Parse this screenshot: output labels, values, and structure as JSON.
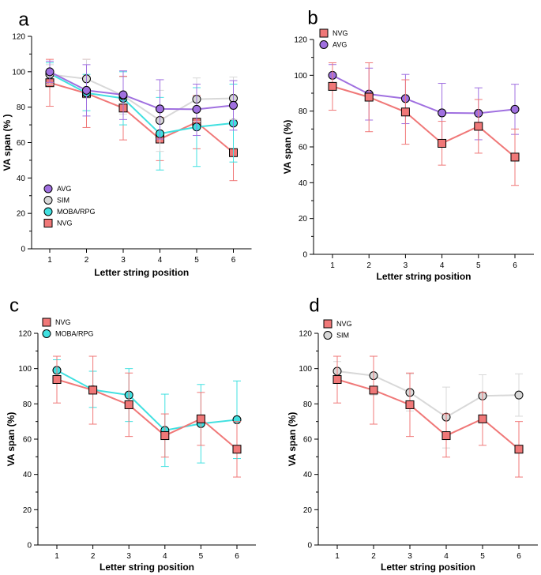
{
  "figure": {
    "panels": [
      {
        "letter": "a",
        "xlabel": "Letter string position",
        "ylabel": "VA span (% )",
        "legend_placement": "bottom-left",
        "legend_order": [
          "AVG",
          "SIM",
          "MOBA/RPG",
          "NVG"
        ]
      },
      {
        "letter": "b",
        "xlabel": "Letter string position",
        "ylabel": "VA span (%)",
        "legend_placement": "top-left",
        "legend_order": [
          "NVG",
          "AVG"
        ]
      },
      {
        "letter": "c",
        "xlabel": "Letter string position",
        "ylabel": "VA span (%)",
        "legend_placement": "top-left",
        "legend_order": [
          "NVG",
          "MOBA/RPG"
        ]
      },
      {
        "letter": "d",
        "xlabel": "Letter string position",
        "ylabel": "VA span (%)",
        "legend_placement": "top-left",
        "legend_order": [
          "NVG",
          "SIM"
        ]
      }
    ]
  },
  "chart_data": {
    "type": "line",
    "categories": [
      1,
      2,
      3,
      4,
      5,
      6
    ],
    "ylim": [
      0,
      120
    ],
    "yticks": [
      0,
      20,
      40,
      60,
      80,
      100,
      120
    ],
    "grid": false,
    "series": [
      {
        "name": "AVG",
        "marker": "circle",
        "color": "#a070e0",
        "line_color": "#a070e0",
        "values": [
          100,
          89.5,
          87,
          79,
          78.8,
          81
        ],
        "err_low": [
          94,
          75,
          73,
          62,
          64,
          67
        ],
        "err_high": [
          106,
          104,
          100.5,
          95.5,
          93,
          95
        ]
      },
      {
        "name": "SIM",
        "marker": "circle",
        "color": "#d8d8d8",
        "line_color": "#d8d8d8",
        "values": [
          98.5,
          96,
          86.5,
          72.5,
          84.5,
          85
        ],
        "err_low": [
          93,
          85,
          76,
          55,
          72,
          73
        ],
        "err_high": [
          104,
          107,
          97,
          89.5,
          96.5,
          97
        ]
      },
      {
        "name": "MOBA/RPG",
        "marker": "circle",
        "color": "#40e0e0",
        "line_color": "#40e0e0",
        "values": [
          99,
          88,
          85,
          65,
          68.8,
          71
        ],
        "err_low": [
          93,
          78,
          70,
          44.5,
          46.5,
          49
        ],
        "err_high": [
          105,
          98.5,
          100,
          85.5,
          91,
          93
        ]
      },
      {
        "name": "NVG",
        "marker": "square",
        "color": "#f07878",
        "line_color": "#f07878",
        "values": [
          93.8,
          87.8,
          79.5,
          62,
          71.5,
          54.3
        ],
        "err_low": [
          80.5,
          68.5,
          61.5,
          49.8,
          56.5,
          38.5
        ],
        "err_high": [
          107,
          107,
          97.5,
          74.3,
          86.5,
          70
        ]
      }
    ]
  }
}
